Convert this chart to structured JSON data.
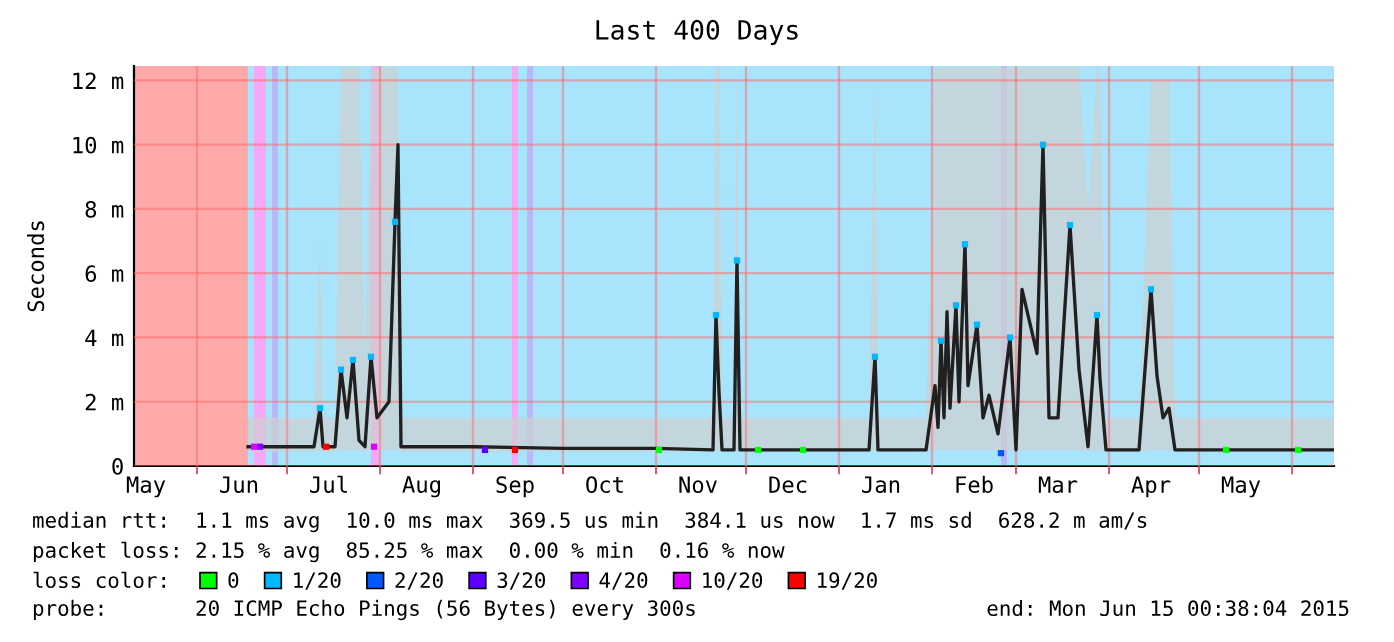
{
  "chart_data": {
    "type": "line",
    "title": "Last 400 Days",
    "ylabel": "Seconds",
    "legend_title": "loss color:",
    "legend": "bottom",
    "grid": true,
    "line_style": "solid",
    "xlim": [
      "2014-05-11",
      "2015-06-15"
    ],
    "ylim": [
      0,
      12.45
    ],
    "yticks": [
      {
        "value": 0,
        "label": "0"
      },
      {
        "value": 2,
        "label": "2 m"
      },
      {
        "value": 4,
        "label": "4 m"
      },
      {
        "value": 6,
        "label": "6 m"
      },
      {
        "value": 8,
        "label": "8 m"
      },
      {
        "value": 10,
        "label": "10 m"
      },
      {
        "value": 12,
        "label": "12 m"
      }
    ],
    "xticks": [
      {
        "value": "2014-05-15",
        "label": "May"
      },
      {
        "value": "2014-06-01",
        "label": null
      },
      {
        "value": "2014-06-15",
        "label": "Jun"
      },
      {
        "value": "2014-07-01",
        "label": null
      },
      {
        "value": "2014-07-15",
        "label": "Jul"
      },
      {
        "value": "2014-08-01",
        "label": null
      },
      {
        "value": "2014-08-15",
        "label": "Aug"
      },
      {
        "value": "2014-09-01",
        "label": null
      },
      {
        "value": "2014-09-15",
        "label": "Sep"
      },
      {
        "value": "2014-10-01",
        "label": null
      },
      {
        "value": "2014-10-15",
        "label": "Oct"
      },
      {
        "value": "2014-11-01",
        "label": null
      },
      {
        "value": "2014-11-15",
        "label": "Nov"
      },
      {
        "value": "2014-12-01",
        "label": null
      },
      {
        "value": "2014-12-15",
        "label": "Dec"
      },
      {
        "value": "2015-01-01",
        "label": null
      },
      {
        "value": "2015-01-15",
        "label": "Jan"
      },
      {
        "value": "2015-02-01",
        "label": null
      },
      {
        "value": "2015-02-15",
        "label": "Feb"
      },
      {
        "value": "2015-03-01",
        "label": null
      },
      {
        "value": "2015-03-15",
        "label": "Mar"
      },
      {
        "value": "2015-04-01",
        "label": null
      },
      {
        "value": "2015-04-15",
        "label": "Apr"
      },
      {
        "value": "2015-05-01",
        "label": null
      },
      {
        "value": "2015-05-15",
        "label": "May"
      },
      {
        "value": "2015-06-01",
        "label": null
      }
    ],
    "bands": [
      {
        "axis": "x",
        "from": "2014-05-11",
        "to": "2014-06-18",
        "color": "#ffaaaa"
      },
      {
        "axis": "x",
        "from": "2014-06-18",
        "to": "2015-06-15",
        "color": "#a8e4fb"
      },
      {
        "axis": "x",
        "from": "2014-06-20",
        "to": "2014-06-24",
        "color": "#f5a8f5"
      },
      {
        "axis": "x",
        "from": "2014-06-26",
        "to": "2014-06-28",
        "color": "#b8b8f8"
      },
      {
        "axis": "x",
        "from": "2014-07-29",
        "to": "2014-08-01",
        "color": "#f5a8f5"
      },
      {
        "axis": "x",
        "from": "2014-09-14",
        "to": "2014-09-16",
        "color": "#f5a8f5"
      },
      {
        "axis": "x",
        "from": "2014-09-19",
        "to": "2014-09-21",
        "color": "#b8b8f8"
      },
      {
        "axis": "x",
        "from": "2015-02-24",
        "to": "2015-02-26",
        "color": "#b8b8f8"
      }
    ],
    "series": [
      {
        "color": "#202020",
        "marker": "none",
        "x": [
          "2014-06-18",
          "2014-07-05",
          "2014-07-10",
          "2014-07-12",
          "2014-07-13",
          "2014-07-17",
          "2014-07-19",
          "2014-07-21",
          "2014-07-23",
          "2014-07-25",
          "2014-07-27",
          "2014-07-29",
          "2014-07-31",
          "2014-08-04",
          "2014-08-06",
          "2014-08-07",
          "2014-08-08",
          "2014-09-01",
          "2014-10-01",
          "2014-11-01",
          "2014-11-20",
          "2014-11-21",
          "2014-11-22",
          "2014-11-23",
          "2014-11-27",
          "2014-11-28",
          "2014-11-29",
          "2014-12-15",
          "2015-01-11",
          "2015-01-13",
          "2015-01-14",
          "2015-01-30",
          "2015-02-02",
          "2015-02-03",
          "2015-02-04",
          "2015-02-05",
          "2015-02-06",
          "2015-02-07",
          "2015-02-09",
          "2015-02-10",
          "2015-02-12",
          "2015-02-13",
          "2015-02-16",
          "2015-02-18",
          "2015-02-20",
          "2015-02-23",
          "2015-02-27",
          "2015-03-01",
          "2015-03-03",
          "2015-03-08",
          "2015-03-10",
          "2015-03-12",
          "2015-03-15",
          "2015-03-19",
          "2015-03-22",
          "2015-03-25",
          "2015-03-28",
          "2015-03-29",
          "2015-03-31",
          "2015-04-11",
          "2015-04-15",
          "2015-04-17",
          "2015-04-19",
          "2015-04-21",
          "2015-04-23",
          "2015-05-01",
          "2015-06-15"
        ],
        "values": [
          0.6,
          0.6,
          0.6,
          1.8,
          0.6,
          0.6,
          3.0,
          1.5,
          3.3,
          0.8,
          0.6,
          3.4,
          1.5,
          2.0,
          7.6,
          10.0,
          0.6,
          0.6,
          0.55,
          0.55,
          0.5,
          4.7,
          2.3,
          0.5,
          0.5,
          6.4,
          0.5,
          0.5,
          0.5,
          3.4,
          0.5,
          0.5,
          2.5,
          1.2,
          3.9,
          1.5,
          4.8,
          1.8,
          5.0,
          2.0,
          6.9,
          2.5,
          4.4,
          1.5,
          2.2,
          1.0,
          4.0,
          0.5,
          5.5,
          3.5,
          10.0,
          1.5,
          1.5,
          7.5,
          3.0,
          0.6,
          4.7,
          2.7,
          0.5,
          0.5,
          5.5,
          2.8,
          1.5,
          1.8,
          0.5,
          0.5,
          0.5
        ],
        "lower": [
          0.45,
          0.45,
          0.45,
          0.5,
          0.45,
          0.45,
          0.5,
          0.5,
          0.5,
          0.5,
          0.45,
          0.5,
          0.5,
          0.5,
          0.5,
          0.5,
          0.45,
          0.45,
          0.45,
          0.45,
          0.45,
          0.5,
          0.5,
          0.45,
          0.45,
          0.5,
          0.45,
          0.45,
          0.45,
          0.5,
          0.45,
          0.45,
          0.5,
          0.5,
          0.5,
          0.5,
          0.5,
          0.5,
          0.5,
          0.5,
          0.5,
          0.5,
          0.5,
          0.5,
          0.5,
          0.5,
          0.5,
          0.45,
          0.5,
          0.5,
          0.5,
          0.5,
          0.5,
          0.5,
          0.5,
          0.45,
          0.5,
          0.5,
          0.45,
          0.45,
          0.5,
          0.5,
          0.5,
          0.5,
          0.45,
          0.45,
          0.45
        ],
        "upper": [
          1.5,
          1.5,
          1.5,
          7.0,
          1.5,
          1.5,
          12.4,
          12.4,
          12.4,
          12.4,
          3.0,
          12.4,
          12.4,
          12.4,
          12.4,
          12.4,
          1.5,
          1.5,
          1.5,
          1.5,
          1.5,
          12.4,
          12.4,
          1.5,
          1.5,
          12.4,
          1.5,
          1.5,
          1.5,
          12.4,
          1.5,
          1.5,
          12.4,
          12.4,
          12.4,
          12.4,
          12.4,
          12.4,
          12.4,
          12.4,
          12.4,
          12.4,
          12.4,
          12.4,
          12.4,
          12.4,
          12.4,
          12.4,
          12.4,
          12.4,
          12.4,
          12.4,
          12.4,
          12.4,
          12.4,
          8.0,
          12.4,
          12.4,
          1.5,
          1.5,
          12.0,
          12.0,
          12.0,
          12.0,
          1.5,
          1.5,
          1.5
        ]
      },
      {
        "type": "scatter",
        "marker": "square",
        "name": "0",
        "color": "#00ff00",
        "x": [
          "2014-11-02",
          "2014-12-05",
          "2014-12-20",
          "2015-05-10",
          "2015-06-03"
        ],
        "values": [
          0.5,
          0.5,
          0.5,
          0.5,
          0.5
        ]
      },
      {
        "type": "scatter",
        "marker": "square",
        "name": "1/20",
        "color": "#00b8ff",
        "x": [
          "2014-07-12",
          "2014-07-19",
          "2014-07-23",
          "2014-07-29",
          "2014-08-06",
          "2014-11-21",
          "2014-11-28",
          "2015-01-13",
          "2015-02-04",
          "2015-02-09",
          "2015-02-12",
          "2015-02-16",
          "2015-02-27",
          "2015-03-10",
          "2015-03-19",
          "2015-03-28",
          "2015-04-15"
        ],
        "values": [
          1.8,
          3.0,
          3.3,
          3.4,
          7.6,
          4.7,
          6.4,
          3.4,
          3.9,
          5.0,
          6.9,
          4.4,
          4.0,
          10.0,
          7.5,
          4.7,
          5.5
        ]
      },
      {
        "type": "scatter",
        "marker": "square",
        "name": "2/20",
        "color": "#0059ff",
        "x": [
          "2015-02-24"
        ],
        "values": [
          0.4
        ]
      },
      {
        "type": "scatter",
        "marker": "square",
        "name": "3/20",
        "color": "#5e00ff",
        "x": [
          "2014-09-05"
        ],
        "values": [
          0.5
        ]
      },
      {
        "type": "scatter",
        "marker": "square",
        "name": "4/20",
        "color": "#7e00ff",
        "x": [
          "2014-06-22"
        ],
        "values": [
          0.6
        ]
      },
      {
        "type": "scatter",
        "marker": "square",
        "name": "10/20",
        "color": "#dd00ff",
        "x": [
          "2014-06-20",
          "2014-07-30"
        ],
        "values": [
          0.6,
          0.6
        ]
      },
      {
        "type": "scatter",
        "marker": "square",
        "name": "19/20",
        "color": "#ff0000",
        "x": [
          "2014-07-14",
          "2014-09-15"
        ],
        "values": [
          0.6,
          0.5
        ]
      }
    ],
    "annotations": [
      "median rtt:  1.1 ms avg  10.0 ms max  369.5 us min  384.1 us now  1.7 ms sd  628.2 m am/s",
      "packet loss: 2.15 % avg  85.25 % max  0.00 % min  0.16 % now",
      "probe:       20 ICMP Echo Pings (56 Bytes) every 300s",
      "end: Mon Jun 15 00:38:04 2015"
    ]
  }
}
